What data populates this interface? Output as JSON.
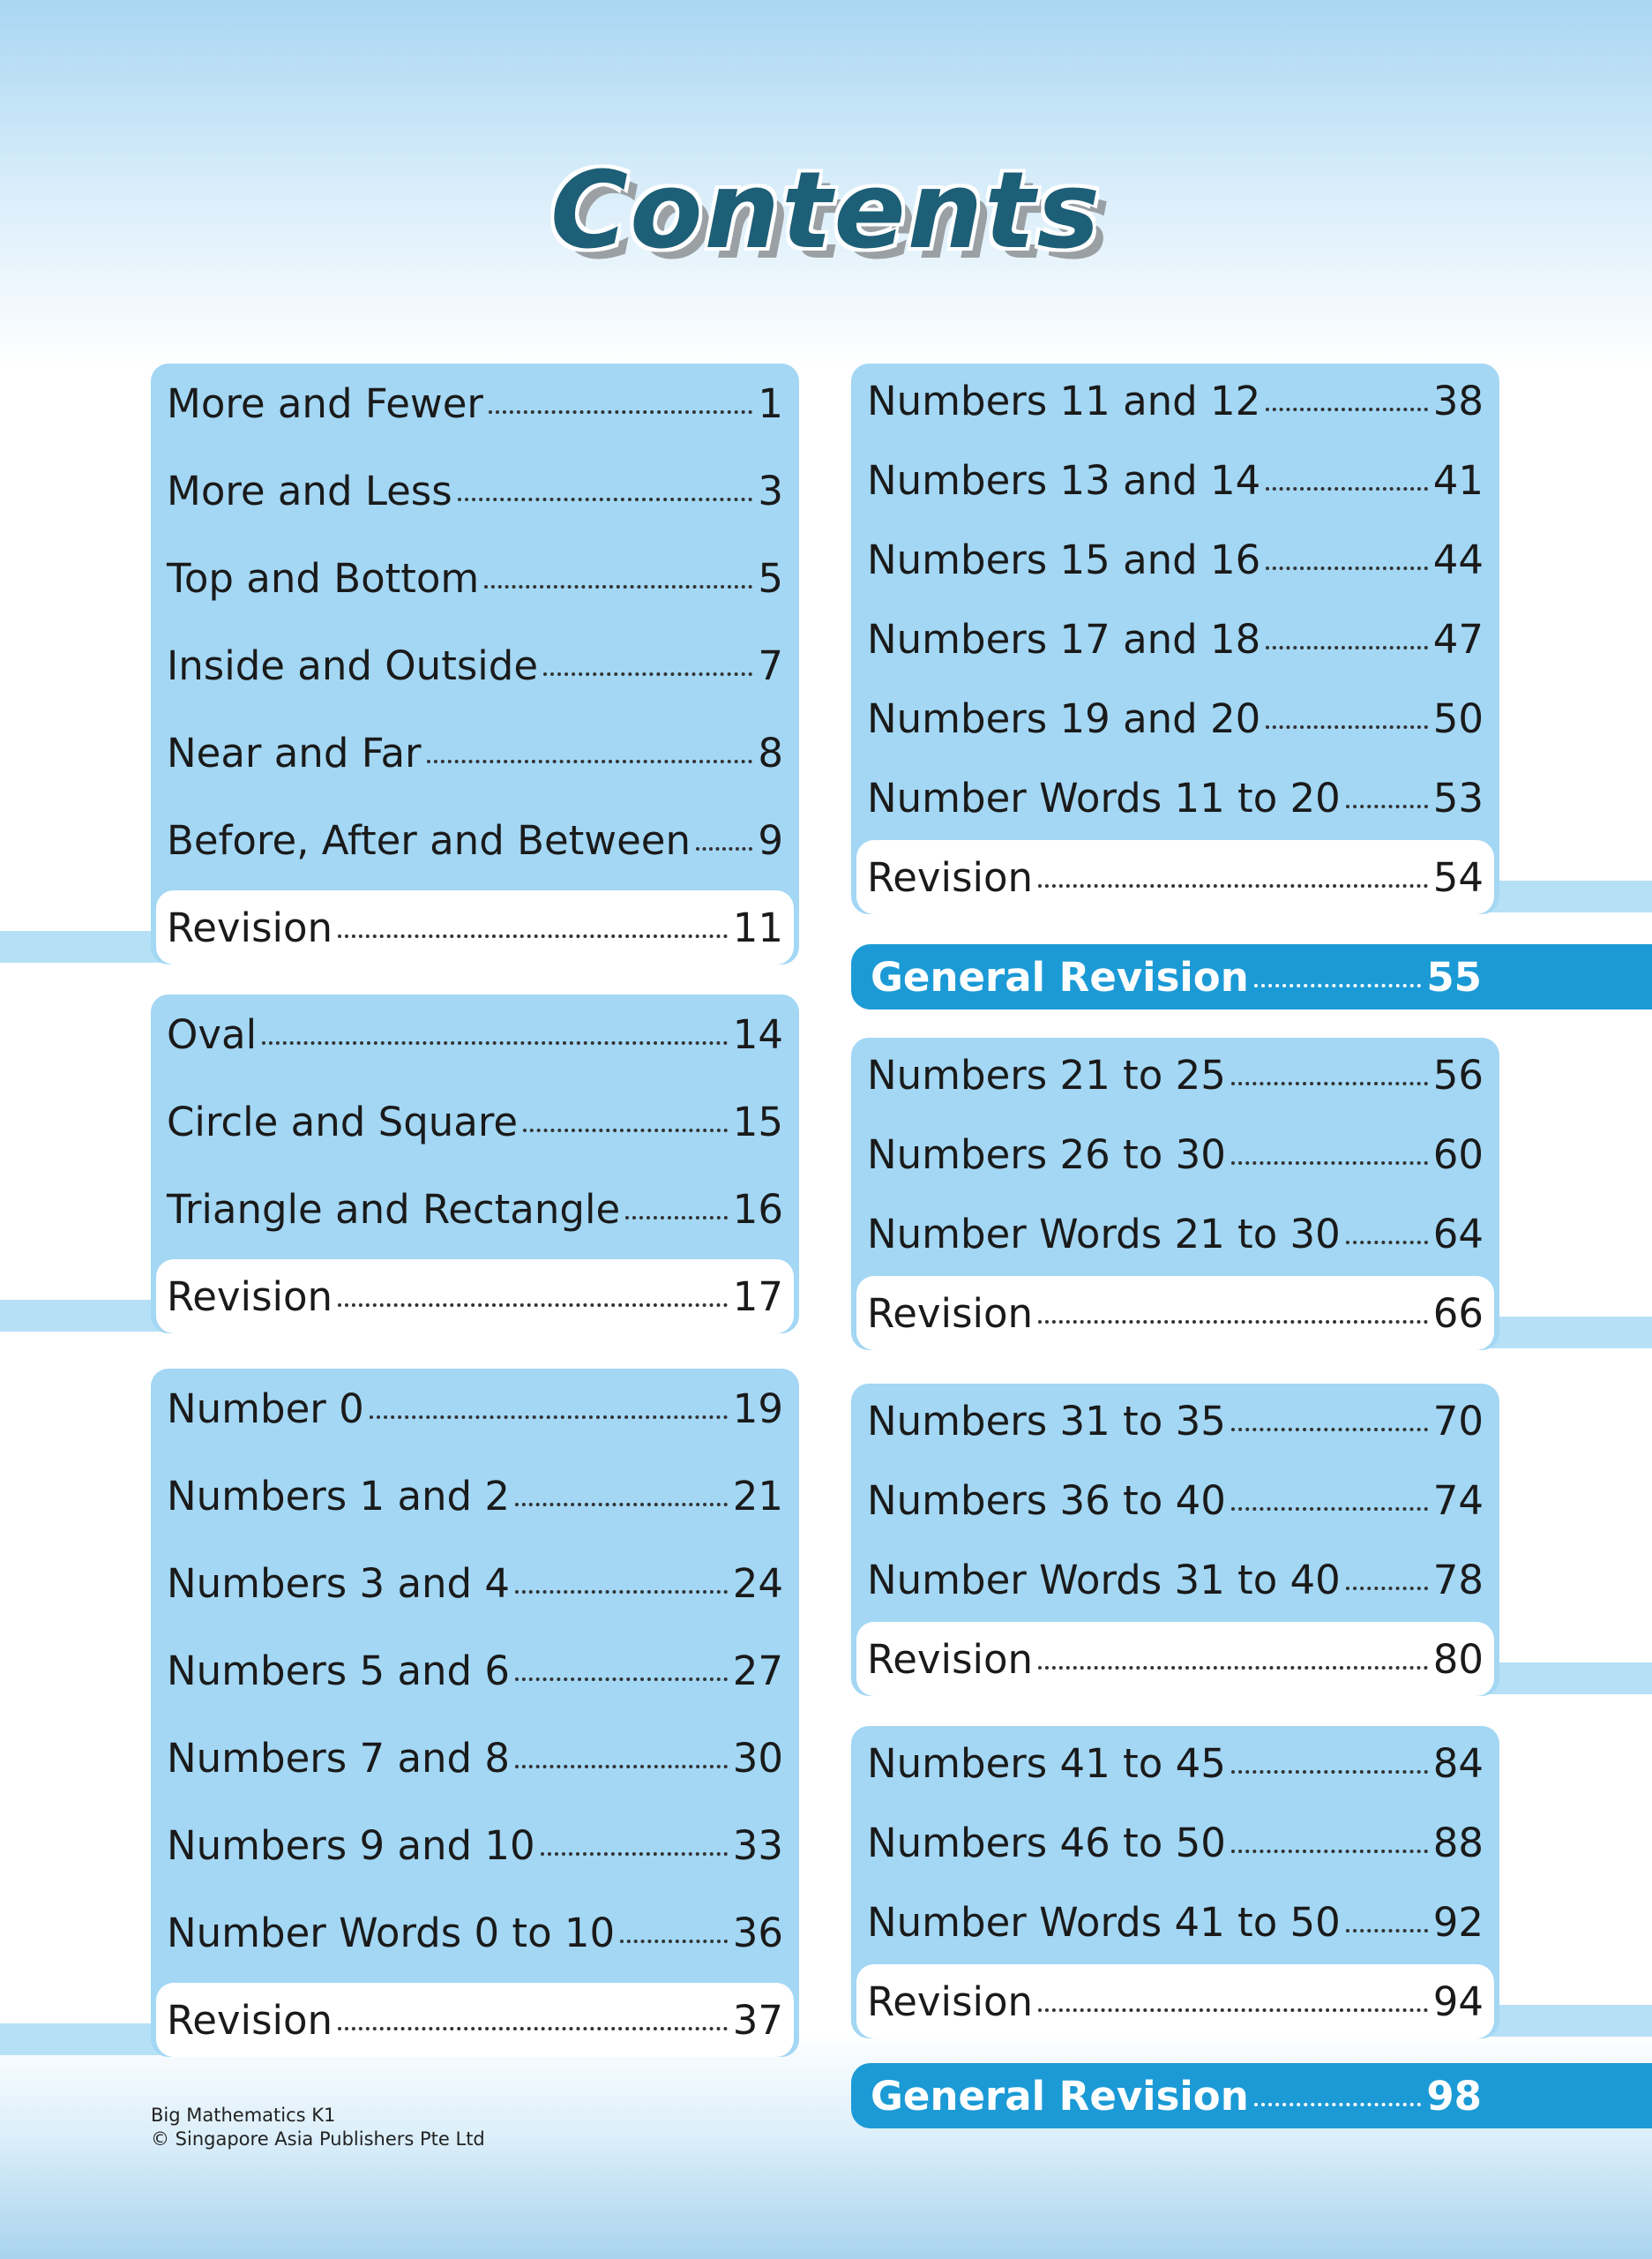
{
  "title": "Contents",
  "left_groups": [
    {
      "items": [
        {
          "label": "More and Fewer",
          "page": 1
        },
        {
          "label": "More and Less",
          "page": 3
        },
        {
          "label": "Top and Bottom",
          "page": 5
        },
        {
          "label": "Inside and Outside",
          "page": 7
        },
        {
          "label": "Near and Far",
          "page": 8
        },
        {
          "label": "Before, After and Between",
          "page": 9
        }
      ],
      "revision": {
        "label": "Revision",
        "page": 11
      }
    },
    {
      "items": [
        {
          "label": "Oval",
          "page": 14
        },
        {
          "label": "Circle and Square",
          "page": 15
        },
        {
          "label": "Triangle and Rectangle",
          "page": 16
        }
      ],
      "revision": {
        "label": "Revision",
        "page": 17
      }
    },
    {
      "items": [
        {
          "label": "Number 0",
          "page": 19
        },
        {
          "label": "Numbers 1 and 2",
          "page": 21
        },
        {
          "label": "Numbers 3 and 4",
          "page": 24
        },
        {
          "label": "Numbers 5 and 6",
          "page": 27
        },
        {
          "label": "Numbers 7 and 8",
          "page": 30
        },
        {
          "label": "Numbers 9 and 10",
          "page": 33
        },
        {
          "label": "Number Words 0 to 10",
          "page": 36
        }
      ],
      "revision": {
        "label": "Revision",
        "page": 37
      }
    }
  ],
  "right_groups": [
    {
      "items": [
        {
          "label": "Numbers 11 and 12",
          "page": 38
        },
        {
          "label": "Numbers 13 and 14",
          "page": 41
        },
        {
          "label": "Numbers 15 and 16",
          "page": 44
        },
        {
          "label": "Numbers 17 and 18",
          "page": 47
        },
        {
          "label": "Numbers 19 and 20",
          "page": 50
        },
        {
          "label": "Number Words 11 to 20",
          "page": 53
        }
      ],
      "revision": {
        "label": "Revision",
        "page": 54
      }
    },
    {
      "items": [
        {
          "label": "Numbers 21 to 25",
          "page": 56
        },
        {
          "label": "Numbers 26 to 30",
          "page": 60
        },
        {
          "label": "Number Words 21 to 30",
          "page": 64
        }
      ],
      "revision": {
        "label": "Revision",
        "page": 66
      }
    },
    {
      "items": [
        {
          "label": "Numbers 31 to 35",
          "page": 70
        },
        {
          "label": "Numbers 36 to 40",
          "page": 74
        },
        {
          "label": "Number Words 31 to 40",
          "page": 78
        }
      ],
      "revision": {
        "label": "Revision",
        "page": 80
      }
    },
    {
      "items": [
        {
          "label": "Numbers 41 to 45",
          "page": 84
        },
        {
          "label": "Numbers 46 to 50",
          "page": 88
        },
        {
          "label": "Number Words 41 to 50",
          "page": 92
        }
      ],
      "revision": {
        "label": "Revision",
        "page": 94
      }
    }
  ],
  "general_revisions": [
    {
      "label": "General Revision",
      "page": 55
    },
    {
      "label": "General Revision",
      "page": 98
    }
  ],
  "footer": [
    "Big Mathematics K1",
    "© Singapore Asia Publishers Pte Ltd"
  ]
}
